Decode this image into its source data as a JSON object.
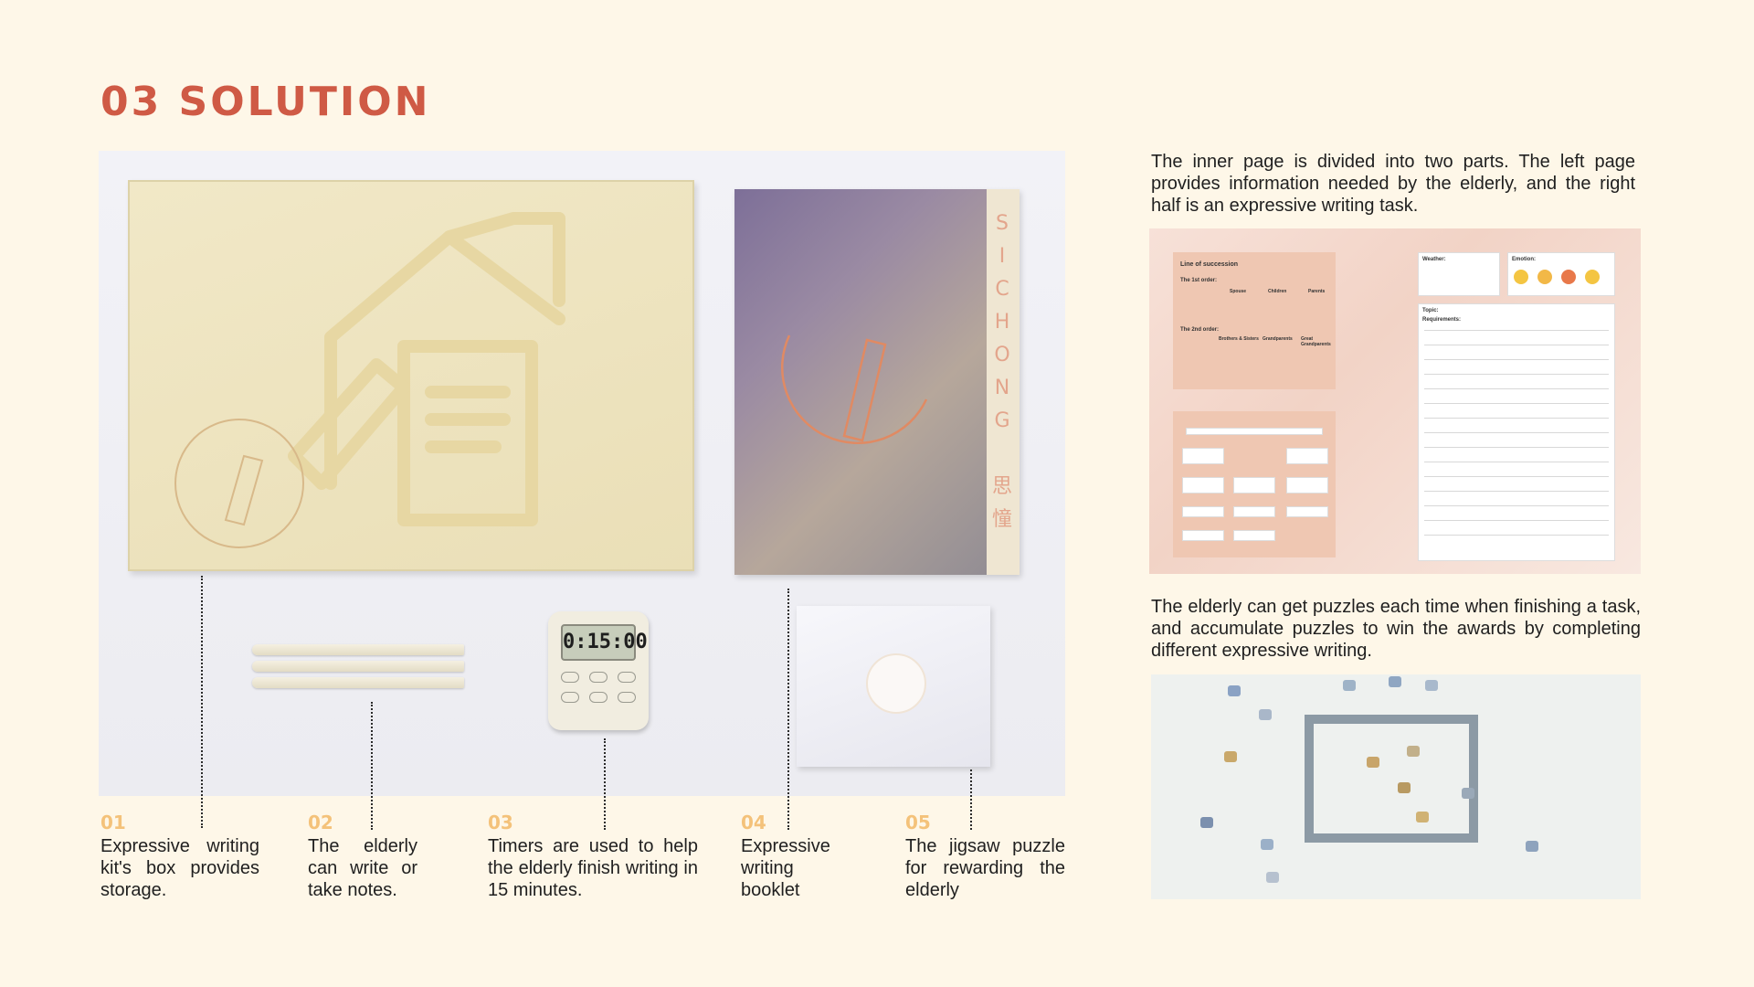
{
  "page": {
    "title": "03 SOLUTION"
  },
  "product_photo": {
    "timer_display": "0:15:00",
    "booklet_brand": "SICHONG",
    "booklet_brand_letters": [
      "S",
      "I",
      "C",
      "H",
      "O",
      "N",
      "G"
    ],
    "booklet_chinese": [
      "思",
      "憧"
    ]
  },
  "captions": [
    {
      "num": "01",
      "text": "Expressive writing kit's box provides storage."
    },
    {
      "num": "02",
      "text": "The elderly can write or take notes."
    },
    {
      "num": "03",
      "text": "Timers are used to help the elderly finish writing in 15 minutes."
    },
    {
      "num": "04",
      "text": "Expressive writing booklet"
    },
    {
      "num": "05",
      "text": "The jigsaw puzzle for rewarding the elderly"
    }
  ],
  "right_column": {
    "inner_page_description": "The inner page is divided into two parts. The left page provides information needed by the elderly, and the right half is an expressive writing task.",
    "puzzle_description": "The elderly can get puzzles each time when finishing a task, and accumulate puzzles to win the awards by completing different expressive writing.",
    "inner_page": {
      "left_card_title": "Line of succession",
      "first_order": "The 1st order:",
      "second_order": "The 2nd order:",
      "first_order_labels": [
        "Spouse",
        "Children",
        "Parents"
      ],
      "second_order_labels": [
        "Brothers & Sisters",
        "Grandparents",
        "Great Grandparents"
      ],
      "weather_label": "Weather:",
      "emotion_label": "Emotion:",
      "topic_label": "Topic:",
      "requirements_label": "Requirements:"
    }
  }
}
